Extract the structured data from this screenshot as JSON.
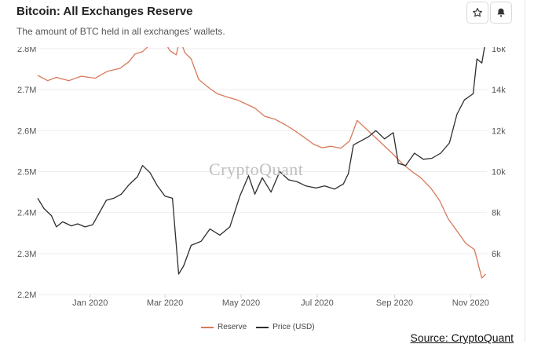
{
  "header": {
    "title": "Bitcoin: All Exchanges Reserve",
    "subtitle": "The amount of BTC held in all exchanges' wallets.",
    "star_icon": "star-outline-icon",
    "bell_icon": "bell-icon"
  },
  "watermark": "CryptoQuant",
  "source_label": "Source: CryptoQuant",
  "colors": {
    "reserve": "#d9785a",
    "price": "#2d2d2d",
    "grid": "#eeeeee"
  },
  "chart_data": {
    "type": "line",
    "title": "Bitcoin: All Exchanges Reserve",
    "subtitle": "The amount of BTC held in all exchanges' wallets.",
    "x_ticks": [
      "Jan 2020",
      "Mar 2020",
      "May 2020",
      "Jul 2020",
      "Sep 2020",
      "Nov 2020"
    ],
    "x_tick_dates": [
      "2020-01-01",
      "2020-03-01",
      "2020-05-01",
      "2020-07-01",
      "2020-09-01",
      "2020-11-01"
    ],
    "xlim": [
      "2019-11-20",
      "2020-11-14"
    ],
    "y_left": {
      "ticks": [
        "2.2M",
        "2.3M",
        "2.4M",
        "2.5M",
        "2.6M",
        "2.7M",
        "2.8M"
      ],
      "ylim": [
        2200000,
        2800000
      ]
    },
    "y_right": {
      "ticks": [
        "6k",
        "8k",
        "10k",
        "12k",
        "14k",
        "16k"
      ],
      "ylim": [
        4000,
        16000
      ]
    },
    "grid": true,
    "legend": "bottom-center",
    "series": [
      {
        "name": "Reserve",
        "axis": "left",
        "points": [
          [
            "2019-11-20",
            2735000
          ],
          [
            "2019-11-28",
            2722000
          ],
          [
            "2019-12-05",
            2730000
          ],
          [
            "2019-12-15",
            2722000
          ],
          [
            "2019-12-25",
            2733000
          ],
          [
            "2020-01-05",
            2728000
          ],
          [
            "2020-01-15",
            2745000
          ],
          [
            "2020-01-25",
            2752000
          ],
          [
            "2020-02-01",
            2768000
          ],
          [
            "2020-02-06",
            2787000
          ],
          [
            "2020-02-12",
            2793000
          ],
          [
            "2020-02-20",
            2815000
          ],
          [
            "2020-02-25",
            2830000
          ],
          [
            "2020-03-01",
            2816000
          ],
          [
            "2020-03-05",
            2795000
          ],
          [
            "2020-03-10",
            2785000
          ],
          [
            "2020-03-13",
            2823000
          ],
          [
            "2020-03-17",
            2790000
          ],
          [
            "2020-03-22",
            2775000
          ],
          [
            "2020-03-28",
            2725000
          ],
          [
            "2020-04-05",
            2705000
          ],
          [
            "2020-04-12",
            2690000
          ],
          [
            "2020-04-20",
            2682000
          ],
          [
            "2020-04-28",
            2675000
          ],
          [
            "2020-05-05",
            2665000
          ],
          [
            "2020-05-12",
            2655000
          ],
          [
            "2020-05-20",
            2635000
          ],
          [
            "2020-05-28",
            2628000
          ],
          [
            "2020-06-05",
            2615000
          ],
          [
            "2020-06-12",
            2602000
          ],
          [
            "2020-06-20",
            2585000
          ],
          [
            "2020-06-28",
            2567000
          ],
          [
            "2020-07-05",
            2558000
          ],
          [
            "2020-07-12",
            2562000
          ],
          [
            "2020-07-20",
            2557000
          ],
          [
            "2020-07-27",
            2575000
          ],
          [
            "2020-08-02",
            2625000
          ],
          [
            "2020-08-08",
            2608000
          ],
          [
            "2020-08-15",
            2588000
          ],
          [
            "2020-08-22",
            2568000
          ],
          [
            "2020-08-30",
            2545000
          ],
          [
            "2020-09-07",
            2520000
          ],
          [
            "2020-09-15",
            2500000
          ],
          [
            "2020-09-22",
            2485000
          ],
          [
            "2020-09-30",
            2460000
          ],
          [
            "2020-10-07",
            2430000
          ],
          [
            "2020-10-14",
            2385000
          ],
          [
            "2020-10-21",
            2355000
          ],
          [
            "2020-10-28",
            2325000
          ],
          [
            "2020-11-04",
            2310000
          ],
          [
            "2020-11-10",
            2240000
          ],
          [
            "2020-11-13",
            2250000
          ]
        ]
      },
      {
        "name": "Price (USD)",
        "axis": "right",
        "points": [
          [
            "2019-11-20",
            8700
          ],
          [
            "2019-11-25",
            8200
          ],
          [
            "2019-12-01",
            7850
          ],
          [
            "2019-12-05",
            7300
          ],
          [
            "2019-12-10",
            7550
          ],
          [
            "2019-12-17",
            7350
          ],
          [
            "2019-12-22",
            7450
          ],
          [
            "2019-12-28",
            7300
          ],
          [
            "2020-01-03",
            7400
          ],
          [
            "2020-01-08",
            7950
          ],
          [
            "2020-01-14",
            8600
          ],
          [
            "2020-01-20",
            8700
          ],
          [
            "2020-01-26",
            8900
          ],
          [
            "2020-02-01",
            9350
          ],
          [
            "2020-02-08",
            9750
          ],
          [
            "2020-02-12",
            10300
          ],
          [
            "2020-02-18",
            9950
          ],
          [
            "2020-02-24",
            9300
          ],
          [
            "2020-03-01",
            8800
          ],
          [
            "2020-03-07",
            8700
          ],
          [
            "2020-03-12",
            5000
          ],
          [
            "2020-03-16",
            5400
          ],
          [
            "2020-03-22",
            6400
          ],
          [
            "2020-03-30",
            6600
          ],
          [
            "2020-04-06",
            7200
          ],
          [
            "2020-04-14",
            6900
          ],
          [
            "2020-04-22",
            7300
          ],
          [
            "2020-04-30",
            8800
          ],
          [
            "2020-05-07",
            9800
          ],
          [
            "2020-05-12",
            8900
          ],
          [
            "2020-05-18",
            9700
          ],
          [
            "2020-05-25",
            9000
          ],
          [
            "2020-06-01",
            10000
          ],
          [
            "2020-06-08",
            9600
          ],
          [
            "2020-06-15",
            9500
          ],
          [
            "2020-06-22",
            9300
          ],
          [
            "2020-06-30",
            9200
          ],
          [
            "2020-07-07",
            9300
          ],
          [
            "2020-07-15",
            9150
          ],
          [
            "2020-07-22",
            9400
          ],
          [
            "2020-07-26",
            9900
          ],
          [
            "2020-07-30",
            11300
          ],
          [
            "2020-08-05",
            11500
          ],
          [
            "2020-08-11",
            11700
          ],
          [
            "2020-08-17",
            12000
          ],
          [
            "2020-08-24",
            11600
          ],
          [
            "2020-08-31",
            11900
          ],
          [
            "2020-09-04",
            10400
          ],
          [
            "2020-09-10",
            10300
          ],
          [
            "2020-09-17",
            10900
          ],
          [
            "2020-09-24",
            10600
          ],
          [
            "2020-10-01",
            10650
          ],
          [
            "2020-10-08",
            10900
          ],
          [
            "2020-10-15",
            11400
          ],
          [
            "2020-10-21",
            12800
          ],
          [
            "2020-10-27",
            13500
          ],
          [
            "2020-11-03",
            13800
          ],
          [
            "2020-11-06",
            15500
          ],
          [
            "2020-11-10",
            15300
          ],
          [
            "2020-11-13",
            16400
          ]
        ]
      }
    ]
  }
}
